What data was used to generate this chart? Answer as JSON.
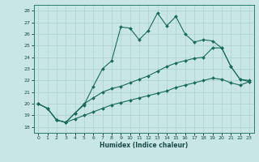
{
  "xlabel": "Humidex (Indice chaleur)",
  "xlim": [
    -0.5,
    23.5
  ],
  "ylim": [
    17.5,
    28.5
  ],
  "yticks": [
    18,
    19,
    20,
    21,
    22,
    23,
    24,
    25,
    26,
    27,
    28
  ],
  "xticks": [
    0,
    1,
    2,
    3,
    4,
    5,
    6,
    7,
    8,
    9,
    10,
    11,
    12,
    13,
    14,
    15,
    16,
    17,
    18,
    19,
    20,
    21,
    22,
    23
  ],
  "background_color": "#c8e6e6",
  "grid_color": "#aad0d0",
  "line_color": "#1a6b5a",
  "line1_y": [
    20.0,
    19.6,
    18.6,
    18.4,
    19.2,
    19.9,
    21.5,
    23.0,
    23.7,
    26.6,
    26.5,
    25.5,
    26.3,
    27.8,
    26.7,
    27.5,
    26.0,
    25.3,
    25.5,
    25.4,
    24.8,
    23.2,
    22.1,
    22.0
  ],
  "line2_y": [
    20.0,
    19.6,
    18.6,
    18.4,
    19.2,
    20.0,
    20.5,
    21.0,
    21.3,
    21.5,
    21.8,
    22.1,
    22.4,
    22.8,
    23.2,
    23.5,
    23.7,
    23.9,
    24.0,
    24.8,
    24.8,
    23.2,
    22.1,
    21.9
  ],
  "line3_y": [
    20.0,
    19.6,
    18.6,
    18.4,
    18.7,
    19.0,
    19.3,
    19.6,
    19.9,
    20.1,
    20.3,
    20.5,
    20.7,
    20.9,
    21.1,
    21.4,
    21.6,
    21.8,
    22.0,
    22.2,
    22.1,
    21.8,
    21.6,
    21.9
  ]
}
